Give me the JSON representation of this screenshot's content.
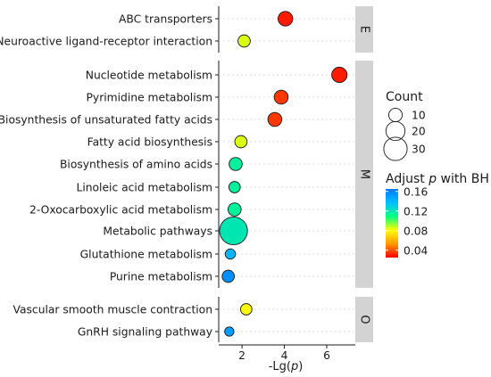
{
  "chart_data": {
    "type": "scatter",
    "xlabel_main": "-Lg(",
    "xlabel_italic": "p",
    "xlabel_close": ")",
    "x_ticks": [
      "2",
      "4",
      "6"
    ],
    "x_tick_values": [
      2,
      4,
      6
    ],
    "xlim": [
      0.9,
      7.35
    ],
    "grid": "horizontal dotted",
    "groups": [
      {
        "label": "E",
        "terms": [
          {
            "term": "ABC transporters",
            "x": 4.05,
            "count": 10,
            "padj": 0.03
          },
          {
            "term": "Neuroactive ligand-receptor interaction",
            "x": 2.1,
            "count": 7,
            "padj": 0.085
          }
        ]
      },
      {
        "label": "M",
        "terms": [
          {
            "term": "Nucleotide metabolism",
            "x": 6.6,
            "count": 11,
            "padj": 0.03
          },
          {
            "term": "Pyrimidine metabolism",
            "x": 3.85,
            "count": 9,
            "padj": 0.035
          },
          {
            "term": "Biosynthesis of unsaturated fatty acids",
            "x": 3.55,
            "count": 9,
            "padj": 0.035
          },
          {
            "term": "Fatty acid biosynthesis",
            "x": 1.95,
            "count": 7,
            "padj": 0.085
          },
          {
            "term": "Biosynthesis of amino acids",
            "x": 1.7,
            "count": 8,
            "padj": 0.115
          },
          {
            "term": "Linoleic acid metabolism",
            "x": 1.65,
            "count": 6,
            "padj": 0.115
          },
          {
            "term": "2-Oxocarboxylic acid metabolism",
            "x": 1.65,
            "count": 8,
            "padj": 0.115
          },
          {
            "term": "Metabolic pathways",
            "x": 1.6,
            "count": 36,
            "padj": 0.12
          },
          {
            "term": "Glutathione metabolism",
            "x": 1.45,
            "count": 5,
            "padj": 0.14
          },
          {
            "term": "Purine metabolism",
            "x": 1.35,
            "count": 7,
            "padj": 0.155
          }
        ]
      },
      {
        "label": "O",
        "terms": [
          {
            "term": "Vascular smooth muscle contraction",
            "x": 2.2,
            "count": 6,
            "padj": 0.08
          },
          {
            "term": "GnRH signaling pathway",
            "x": 1.4,
            "count": 4,
            "padj": 0.15
          }
        ]
      }
    ],
    "size_legend": {
      "title": "Count",
      "entries": [
        "10",
        "20",
        "30"
      ],
      "entry_values": [
        10,
        20,
        30
      ]
    },
    "color_legend": {
      "title_main": "Adjust ",
      "title_italic": "p",
      "title_rest": " with BH",
      "ticks": [
        "0.16",
        "0.12",
        "0.08",
        "0.04"
      ],
      "tick_values": [
        0.16,
        0.12,
        0.08,
        0.04
      ],
      "range": [
        0.025,
        0.165
      ],
      "colors_low_to_high": [
        "#ff0000",
        "#ff9900",
        "#ffff00",
        "#00ff80",
        "#00bfff",
        "#0077ff"
      ]
    }
  }
}
